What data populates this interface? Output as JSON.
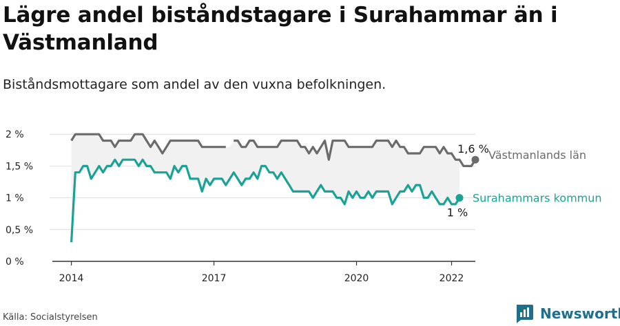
{
  "header": {
    "title": "Lägre andel biståndstagare i Surahammar än i Västmanland",
    "subtitle": "Biståndsmottagare som andel av den vuxna befolkningen."
  },
  "footer": {
    "source": "Källa: Socialstyrelsen",
    "brand": "Newsworthy"
  },
  "chart_data": {
    "type": "line",
    "y_tick_labels": [
      "0 %",
      "0,5 %",
      "1 %",
      "1,5 %",
      "2 %"
    ],
    "y_ticks": [
      0,
      0.5,
      1,
      1.5,
      2
    ],
    "ylim": [
      0,
      2.1
    ],
    "x_tick_labels": [
      "2014",
      "2017",
      "2020",
      "2022"
    ],
    "x_ticks": [
      2014.0,
      2017.0,
      2020.0,
      2022.0
    ],
    "xlim": [
      2013.6,
      2022.5
    ],
    "grid": true,
    "fill_between_series": true,
    "series": [
      {
        "name": "Västmanlands län",
        "color": "#6b6b6b",
        "end_label": "1,6 %",
        "start": "2014-01",
        "values": [
          1.9,
          2.0,
          2.0,
          2.0,
          2.0,
          2.0,
          2.0,
          2.0,
          1.9,
          1.9,
          1.9,
          1.8,
          1.9,
          1.9,
          1.9,
          1.9,
          2.0,
          2.0,
          2.0,
          1.9,
          1.8,
          1.9,
          1.8,
          1.7,
          1.8,
          1.9,
          1.9,
          1.9,
          1.9,
          1.9,
          1.9,
          1.9,
          1.9,
          1.8,
          1.8,
          1.8,
          1.8,
          1.8,
          1.8,
          1.8,
          null,
          1.9,
          1.9,
          1.8,
          1.8,
          1.9,
          1.9,
          1.8,
          1.8,
          1.8,
          1.8,
          1.8,
          1.8,
          1.9,
          1.9,
          1.9,
          1.9,
          1.9,
          1.8,
          1.8,
          1.7,
          1.8,
          1.7,
          1.8,
          1.9,
          1.6,
          1.9,
          1.9,
          1.9,
          1.9,
          1.8,
          1.8,
          1.8,
          1.8,
          1.8,
          1.8,
          1.8,
          1.9,
          1.9,
          1.9,
          1.9,
          1.8,
          1.9,
          1.8,
          1.8,
          1.7,
          1.7,
          1.7,
          1.7,
          1.8,
          1.8,
          1.8,
          1.8,
          1.7,
          1.8,
          1.7,
          1.7,
          1.6,
          1.6,
          1.5,
          1.5,
          1.5,
          1.6
        ]
      },
      {
        "name": "Surahammars kommun",
        "color": "#1aa394",
        "end_label": "1 %",
        "start": "2014-01",
        "values": [
          0.3,
          1.4,
          1.4,
          1.5,
          1.5,
          1.3,
          1.4,
          1.5,
          1.4,
          1.5,
          1.5,
          1.6,
          1.5,
          1.6,
          1.6,
          1.6,
          1.6,
          1.5,
          1.6,
          1.5,
          1.5,
          1.4,
          1.4,
          1.4,
          1.4,
          1.3,
          1.5,
          1.4,
          1.5,
          1.5,
          1.3,
          1.3,
          1.3,
          1.1,
          1.3,
          1.2,
          1.3,
          1.3,
          1.3,
          1.2,
          1.3,
          1.4,
          1.3,
          1.2,
          1.3,
          1.3,
          1.4,
          1.3,
          1.5,
          1.5,
          1.4,
          1.4,
          1.3,
          1.4,
          1.3,
          1.2,
          1.1,
          1.1,
          1.1,
          1.1,
          1.1,
          1.0,
          1.1,
          1.2,
          1.1,
          1.1,
          1.1,
          1.0,
          1.0,
          0.9,
          1.1,
          1.0,
          1.1,
          1.0,
          1.0,
          1.1,
          1.0,
          1.1,
          1.1,
          1.1,
          1.1,
          0.9,
          1.0,
          1.1,
          1.1,
          1.2,
          1.1,
          1.2,
          1.2,
          1.0,
          1.0,
          1.1,
          1.0,
          0.9,
          0.9,
          1.0,
          0.9,
          0.9,
          1.0
        ]
      }
    ]
  }
}
